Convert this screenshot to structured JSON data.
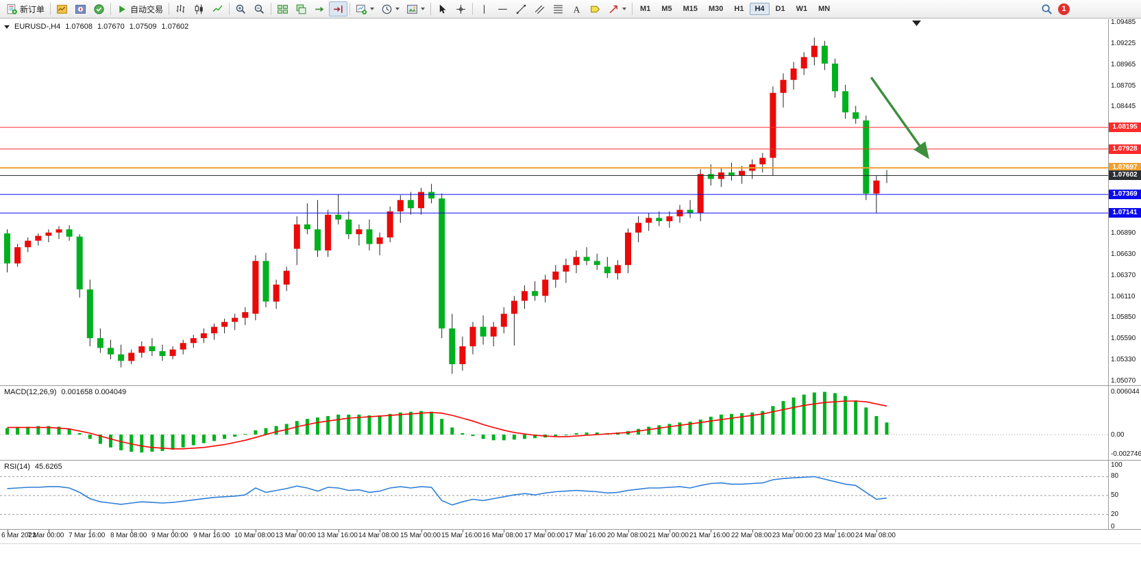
{
  "toolbar": {
    "groups": [
      {
        "items": [
          {
            "name": "new-order-button",
            "icon": "new-order",
            "label": "新订单"
          }
        ]
      },
      {
        "items": [
          {
            "name": "market-watch-button",
            "icon": "market-watch"
          },
          {
            "name": "navigator-button",
            "icon": "navigator"
          },
          {
            "name": "terminal-button",
            "icon": "terminal"
          }
        ]
      },
      {
        "items": [
          {
            "name": "auto-trading-button",
            "icon": "auto-trading",
            "label": "自动交易"
          }
        ]
      },
      {
        "items": [
          {
            "name": "bars-chart-button",
            "icon": "bars-chart"
          },
          {
            "name": "candlestick-chart-button",
            "icon": "candle-chart"
          },
          {
            "name": "line-chart-button",
            "icon": "line-chart"
          }
        ]
      },
      {
        "items": [
          {
            "name": "zoom-in-button",
            "icon": "zoom-in"
          },
          {
            "name": "zoom-out-button",
            "icon": "zoom-out"
          }
        ]
      },
      {
        "items": [
          {
            "name": "tile-windows-button",
            "icon": "tile-windows"
          },
          {
            "name": "cascade-windows-button",
            "icon": "cascade-windows"
          },
          {
            "name": "auto-scroll-button",
            "icon": "auto-scroll"
          },
          {
            "name": "chart-shift-button",
            "icon": "chart-shift",
            "active": true
          }
        ]
      },
      {
        "items": [
          {
            "name": "new-chart-button",
            "icon": "new-chart",
            "caret": true
          },
          {
            "name": "periods-button",
            "icon": "clock",
            "caret": true
          },
          {
            "name": "templates-button",
            "icon": "template",
            "caret": true
          }
        ]
      },
      {
        "items": [
          {
            "name": "cursor-button",
            "icon": "cursor"
          },
          {
            "name": "crosshair-button",
            "icon": "crosshair"
          }
        ]
      },
      {
        "items": [
          {
            "name": "vertical-line-button",
            "icon": "v-line"
          },
          {
            "name": "horizontal-line-button",
            "icon": "h-line"
          },
          {
            "name": "trendline-button",
            "icon": "trend-line"
          },
          {
            "name": "channel-button",
            "icon": "channel"
          },
          {
            "name": "fibonacci-button",
            "icon": "fibo"
          },
          {
            "name": "text-button",
            "icon": "text-tool"
          },
          {
            "name": "label-button",
            "icon": "label-tool"
          },
          {
            "name": "arrows-button",
            "icon": "arrows-tool",
            "caret": true
          }
        ]
      }
    ],
    "timeframes": [
      {
        "label": "M1"
      },
      {
        "label": "M5"
      },
      {
        "label": "M15"
      },
      {
        "label": "M30"
      },
      {
        "label": "H1"
      },
      {
        "label": "H4",
        "active": true
      },
      {
        "label": "D1"
      },
      {
        "label": "W1"
      },
      {
        "label": "MN"
      }
    ],
    "notification_count": "1"
  },
  "chart": {
    "symbol_header": "EURUSD-,H4",
    "open": "1.07608",
    "high": "1.07670",
    "low": "1.07509",
    "close": "1.07602"
  },
  "chart_data": {
    "type": "candlestick",
    "symbol": "EURUSD-",
    "timeframe": "H4",
    "color_convention": "red=bullish, green=bearish",
    "colors": {
      "bull": "#ea0a0a",
      "bear": "#00b01e",
      "wick": "#222222"
    },
    "y_axis": {
      "min": 1.0507,
      "max": 1.09485,
      "grid_labels": [
        "1.09485",
        "1.09225",
        "1.08965",
        "1.08705",
        "1.08445",
        "1.06890",
        "1.06630",
        "1.06370",
        "1.06110",
        "1.05850",
        "1.05590",
        "1.05330",
        "1.05070"
      ]
    },
    "hlines": [
      {
        "name": "resistance-line-1",
        "value": 1.08195,
        "label": "1.08195",
        "color": "#ff2a2a",
        "width": 1
      },
      {
        "name": "resistance-line-2",
        "value": 1.07928,
        "label": "1.07928",
        "color": "#ff2a2a",
        "width": 1
      },
      {
        "name": "pivot-line",
        "value": 1.07697,
        "label": "1.07697",
        "color": "#f0a030",
        "width": 2
      },
      {
        "name": "bid-price-line",
        "value": 1.07602,
        "label": "1.07602",
        "color": "#2b2e33",
        "width": 1
      },
      {
        "name": "support-line-1",
        "value": 1.07369,
        "label": "1.07369",
        "color": "#0a0af0",
        "width": 1
      },
      {
        "name": "support-line-2",
        "value": 1.07141,
        "label": "1.07141",
        "color": "#0a0af0",
        "width": 1
      }
    ],
    "candles": [
      [
        1.0689,
        1.0694,
        1.0641,
        1.0652
      ],
      [
        1.0652,
        1.0676,
        1.0648,
        1.0672
      ],
      [
        1.0672,
        1.0684,
        1.0666,
        1.068
      ],
      [
        1.068,
        1.0689,
        1.0674,
        1.0686
      ],
      [
        1.0686,
        1.0694,
        1.0678,
        1.069
      ],
      [
        1.069,
        1.0698,
        1.0682,
        1.0694
      ],
      [
        1.0694,
        1.0699,
        1.068,
        1.0685
      ],
      [
        1.0685,
        1.0688,
        1.061,
        1.062
      ],
      [
        1.062,
        1.0632,
        1.055,
        1.056
      ],
      [
        1.056,
        1.0572,
        1.0542,
        1.0548
      ],
      [
        1.0548,
        1.0558,
        1.0534,
        1.054
      ],
      [
        1.054,
        1.0552,
        1.0524,
        1.0532
      ],
      [
        1.0532,
        1.0546,
        1.0528,
        1.0542
      ],
      [
        1.0542,
        1.0556,
        1.0536,
        1.055
      ],
      [
        1.055,
        1.056,
        1.0538,
        1.0544
      ],
      [
        1.0544,
        1.0552,
        1.0532,
        1.0538
      ],
      [
        1.0538,
        1.055,
        1.0534,
        1.0546
      ],
      [
        1.0546,
        1.0558,
        1.054,
        1.0554
      ],
      [
        1.0554,
        1.0564,
        1.0548,
        1.056
      ],
      [
        1.056,
        1.0572,
        1.0554,
        1.0566
      ],
      [
        1.0566,
        1.0578,
        1.0558,
        1.0574
      ],
      [
        1.0574,
        1.0584,
        1.0566,
        1.058
      ],
      [
        1.058,
        1.059,
        1.057,
        1.0585
      ],
      [
        1.0585,
        1.0598,
        1.0576,
        1.0592
      ],
      [
        1.059,
        1.0662,
        1.0582,
        1.0655
      ],
      [
        1.0655,
        1.0665,
        1.0598,
        1.0605
      ],
      [
        1.0605,
        1.0632,
        1.0596,
        1.0626
      ],
      [
        1.0626,
        1.0648,
        1.0618,
        1.0643
      ],
      [
        1.067,
        1.071,
        1.065,
        1.07
      ],
      [
        1.07,
        1.0726,
        1.0688,
        1.0694
      ],
      [
        1.0694,
        1.073,
        1.066,
        1.0668
      ],
      [
        1.0668,
        1.0718,
        1.066,
        1.0712
      ],
      [
        1.0712,
        1.0737,
        1.07,
        1.0706
      ],
      [
        1.0706,
        1.0716,
        1.0682,
        1.0688
      ],
      [
        1.0688,
        1.07,
        1.0674,
        1.0694
      ],
      [
        1.0694,
        1.0706,
        1.0668,
        1.0676
      ],
      [
        1.0676,
        1.069,
        1.0662,
        1.0684
      ],
      [
        1.0684,
        1.0722,
        1.0678,
        1.0716
      ],
      [
        1.0716,
        1.0736,
        1.0702,
        1.073
      ],
      [
        1.073,
        1.074,
        1.0712,
        1.072
      ],
      [
        1.072,
        1.0745,
        1.0712,
        1.074
      ],
      [
        1.074,
        1.075,
        1.0726,
        1.0732
      ],
      [
        1.0732,
        1.0738,
        1.056,
        1.0572
      ],
      [
        1.0572,
        1.059,
        1.0516,
        1.0528
      ],
      [
        1.0528,
        1.0562,
        1.052,
        1.055
      ],
      [
        1.055,
        1.058,
        1.054,
        1.0574
      ],
      [
        1.0574,
        1.0588,
        1.0552,
        1.0562
      ],
      [
        1.0562,
        1.058,
        1.055,
        1.0574
      ],
      [
        1.0574,
        1.0598,
        1.0566,
        1.059
      ],
      [
        1.059,
        1.0612,
        1.0551,
        1.0606
      ],
      [
        1.0606,
        1.0625,
        1.0596,
        1.0618
      ],
      [
        1.0618,
        1.063,
        1.0606,
        1.0612
      ],
      [
        1.0612,
        1.0638,
        1.0604,
        1.0632
      ],
      [
        1.0632,
        1.065,
        1.0622,
        1.0642
      ],
      [
        1.0642,
        1.0658,
        1.0628,
        1.065
      ],
      [
        1.065,
        1.0668,
        1.064,
        1.066
      ],
      [
        1.066,
        1.0672,
        1.065,
        1.0655
      ],
      [
        1.0655,
        1.0664,
        1.0644,
        1.065
      ],
      [
        1.0648,
        1.066,
        1.0634,
        1.064
      ],
      [
        1.064,
        1.0656,
        1.0632,
        1.065
      ],
      [
        1.065,
        1.0695,
        1.064,
        1.069
      ],
      [
        1.069,
        1.071,
        1.0678,
        1.0702
      ],
      [
        1.0702,
        1.0714,
        1.0692,
        1.0708
      ],
      [
        1.0708,
        1.0716,
        1.0698,
        1.0704
      ],
      [
        1.0704,
        1.0716,
        1.0696,
        1.071
      ],
      [
        1.071,
        1.0724,
        1.0702,
        1.0718
      ],
      [
        1.0718,
        1.073,
        1.0708,
        1.0714
      ],
      [
        1.0714,
        1.0768,
        1.0704,
        1.0762
      ],
      [
        1.0762,
        1.0774,
        1.0748,
        1.0756
      ],
      [
        1.0756,
        1.077,
        1.0746,
        1.0764
      ],
      [
        1.0764,
        1.0776,
        1.0754,
        1.076
      ],
      [
        1.076,
        1.0772,
        1.075,
        1.0766
      ],
      [
        1.0766,
        1.078,
        1.0756,
        1.0774
      ],
      [
        1.0774,
        1.0788,
        1.0764,
        1.0782
      ],
      [
        1.0782,
        1.087,
        1.076,
        1.0862
      ],
      [
        1.0862,
        1.0886,
        1.0844,
        1.0878
      ],
      [
        1.0878,
        1.09,
        1.0866,
        1.0892
      ],
      [
        1.0892,
        1.0912,
        1.0884,
        1.0906
      ],
      [
        1.0906,
        1.093,
        1.0896,
        1.092
      ],
      [
        1.092,
        1.0926,
        1.089,
        1.0898
      ],
      [
        1.0898,
        1.0904,
        1.0856,
        1.0864
      ],
      [
        1.0864,
        1.0872,
        1.083,
        1.0838
      ],
      [
        1.0838,
        1.0846,
        1.0824,
        1.083
      ],
      [
        1.0828,
        1.0834,
        1.073,
        1.0738
      ],
      [
        1.0738,
        1.076,
        1.0714,
        1.0754
      ],
      [
        1.07608,
        1.0767,
        1.07509,
        1.07602
      ]
    ],
    "time_labels": [
      "6 Mar 2023",
      "7 Mar 00:00",
      "7 Mar 16:00",
      "8 Mar 08:00",
      "9 Mar 00:00",
      "9 Mar 16:00",
      "10 Mar 08:00",
      "13 Mar 00:00",
      "13 Mar 16:00",
      "14 Mar 08:00",
      "15 Mar 00:00",
      "15 Mar 16:00",
      "16 Mar 08:00",
      "17 Mar 00:00",
      "17 Mar 16:00",
      "20 Mar 08:00",
      "21 Mar 00:00",
      "21 Mar 16:00",
      "22 Mar 08:00",
      "23 Mar 00:00",
      "23 Mar 16:00",
      "24 Mar 08:00"
    ],
    "time_label_every": 4,
    "annotations": [
      {
        "type": "arrow",
        "name": "sell-signal-arrow",
        "color": "#3e8e3e",
        "from": {
          "index": 83.5,
          "price": 1.0881
        },
        "to": {
          "index": 88.9,
          "price": 1.0784
        }
      }
    ],
    "macd": {
      "label": "MACD(12,26,9)",
      "current_values": "0.001658 0.004049",
      "axis_labels": [
        "0.006044",
        "0.00",
        "-0.002746"
      ],
      "max": 0.006044,
      "min": -0.002746,
      "histogram_color": "#00b01e",
      "signal_color": "#ff0000",
      "histogram": [
        0.0009,
        0.001,
        0.0011,
        0.0012,
        0.0012,
        0.0011,
        0.0008,
        0.0002,
        -0.0006,
        -0.0013,
        -0.0018,
        -0.0022,
        -0.0024,
        -0.0025,
        -0.0024,
        -0.0023,
        -0.0021,
        -0.0018,
        -0.0015,
        -0.0012,
        -0.0009,
        -0.0006,
        -0.0003,
        0.0001,
        0.0006,
        0.0009,
        0.0012,
        0.0015,
        0.0019,
        0.0022,
        0.0024,
        0.0026,
        0.0028,
        0.0028,
        0.0028,
        0.0027,
        0.0027,
        0.0029,
        0.0031,
        0.0032,
        0.0033,
        0.0032,
        0.0022,
        0.001,
        0.0002,
        -0.0002,
        -0.0006,
        -0.0008,
        -0.0008,
        -0.0007,
        -0.0006,
        -0.0005,
        -0.0004,
        -0.0002,
        0.0,
        0.0002,
        0.0003,
        0.0003,
        0.0002,
        0.0003,
        0.0005,
        0.0008,
        0.0011,
        0.0013,
        0.0015,
        0.0017,
        0.0018,
        0.0021,
        0.0025,
        0.0028,
        0.0029,
        0.003,
        0.0031,
        0.0033,
        0.004,
        0.0047,
        0.0052,
        0.0056,
        0.0059,
        0.006,
        0.0058,
        0.0054,
        0.0048,
        0.0038,
        0.0026,
        0.0017
      ],
      "signal": [
        0.001,
        0.001,
        0.001,
        0.001,
        0.001,
        0.0009,
        0.0008,
        0.0005,
        0.0002,
        -0.0002,
        -0.0006,
        -0.001,
        -0.0013,
        -0.0016,
        -0.0018,
        -0.0019,
        -0.002,
        -0.002,
        -0.0019,
        -0.0018,
        -0.0016,
        -0.0014,
        -0.0011,
        -0.0008,
        -0.0004,
        0.0,
        0.0004,
        0.0007,
        0.0011,
        0.0014,
        0.0017,
        0.0019,
        0.0021,
        0.0023,
        0.0024,
        0.0025,
        0.0026,
        0.0027,
        0.0028,
        0.0029,
        0.003,
        0.0031,
        0.003,
        0.0027,
        0.0023,
        0.0019,
        0.0014,
        0.001,
        0.0006,
        0.0003,
        0.0001,
        -0.0001,
        -0.0002,
        -0.0003,
        -0.0003,
        -0.0002,
        -0.0001,
        0.0,
        0.0001,
        0.0002,
        0.0003,
        0.0005,
        0.0007,
        0.0009,
        0.0011,
        0.0013,
        0.0015,
        0.0017,
        0.0019,
        0.0021,
        0.0023,
        0.0025,
        0.0027,
        0.0029,
        0.0032,
        0.0035,
        0.0038,
        0.0041,
        0.0043,
        0.0045,
        0.0046,
        0.0047,
        0.0047,
        0.0046,
        0.0043,
        0.004
      ]
    },
    "rsi": {
      "label": "RSI(14)",
      "current_value": "45.6265",
      "axis_labels": [
        "100",
        "80",
        "50",
        "20",
        "0"
      ],
      "levels": [
        80,
        50,
        20
      ],
      "line_color": "#2f7ed8",
      "values": [
        61,
        62,
        63,
        63,
        64,
        64,
        62,
        55,
        45,
        40,
        38,
        36,
        38,
        40,
        39,
        38,
        39,
        41,
        43,
        45,
        47,
        48,
        49,
        51,
        62,
        55,
        58,
        61,
        65,
        62,
        57,
        63,
        62,
        58,
        59,
        55,
        57,
        62,
        64,
        62,
        64,
        63,
        42,
        35,
        40,
        44,
        42,
        45,
        48,
        51,
        53,
        51,
        54,
        56,
        57,
        58,
        57,
        56,
        54,
        55,
        58,
        60,
        62,
        62,
        63,
        64,
        62,
        66,
        69,
        70,
        68,
        68,
        69,
        70,
        75,
        77,
        78,
        79,
        80,
        76,
        72,
        68,
        66,
        55,
        44,
        46
      ]
    }
  }
}
